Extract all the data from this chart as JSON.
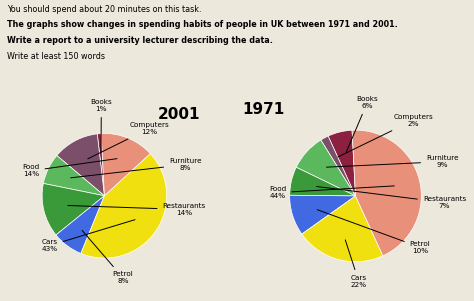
{
  "title_text_1": "You should spend about 20 minutes on this task.",
  "title_text_2": "The graphs show changes in spending habits of people in UK between 1971 and 2001.",
  "title_text_3": "Write a report to a university lecturer describing the data.",
  "title_text_4": "Write at least 150 words",
  "chart2001": {
    "year": "2001",
    "labels": [
      "Books",
      "Computers",
      "Furniture",
      "Restaurants",
      "Petrol",
      "Cars",
      "Food"
    ],
    "values": [
      1,
      12,
      8,
      14,
      8,
      43,
      14
    ],
    "colors": [
      "#8B2040",
      "#7B4F6A",
      "#5CB85C",
      "#3A9A3A",
      "#4169E1",
      "#F0E010",
      "#E8907A"
    ],
    "startangle": 93
  },
  "chart1971": {
    "year": "1971",
    "labels": [
      "Books",
      "Computers",
      "Furniture",
      "Restaurants",
      "Petrol",
      "Cars",
      "Food"
    ],
    "values": [
      6,
      2,
      9,
      7,
      10,
      22,
      44
    ],
    "colors": [
      "#8B2040",
      "#7B4F6A",
      "#5CB85C",
      "#3A9A3A",
      "#4169E1",
      "#F0E010",
      "#E8907A"
    ],
    "startangle": 93
  },
  "bg_color": "#ede8dc"
}
